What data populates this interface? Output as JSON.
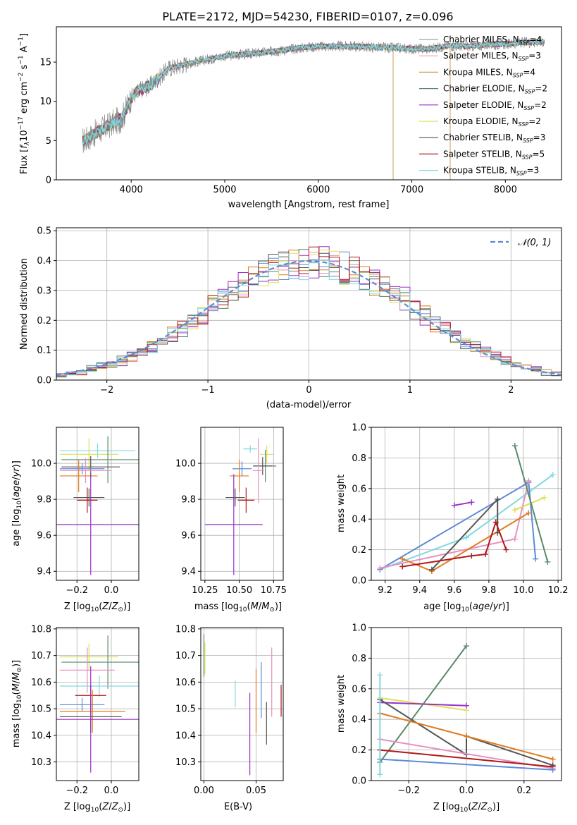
{
  "figure_title": "PLATE=2172, MJD=54230, FIBERID=0107, z=0.096",
  "colors": {
    "Chabrier MILES": "#8fa9b5",
    "Salpeter MILES": "#e8a0bf",
    "Kroupa MILES": "#c8a060",
    "Chabrier ELODIE": "#5a8a6a",
    "Salpeter ELODIE": "#9b30c9",
    "Kroupa ELODIE": "#dce05a",
    "Chabrier STELIB": "#555555",
    "Salpeter STELIB": "#b01818",
    "Kroupa STELIB": "#80d8e0",
    "blue": "#5b8bd8",
    "orange": "#e07a20",
    "pink": "#e890c0",
    "green": "#5a8a6a",
    "purple": "#9b30c9",
    "yellow": "#dce05a",
    "gray": "#555555",
    "red": "#b01818",
    "cyan": "#80d8e0",
    "normal": "#5b8bd8"
  },
  "chart_data": [
    {
      "id": "spectrum",
      "type": "line",
      "title": "",
      "xlabel": "wavelength [Angstrom, rest frame]",
      "ylabel": "Flux [f_λ 10^-17 erg cm^-2 s^-1 A^-1]",
      "xlim": [
        3200,
        8600
      ],
      "ylim": [
        0,
        19.5
      ],
      "xticks": [
        4000,
        5000,
        6000,
        7000,
        8000
      ],
      "yticks": [
        0,
        5,
        10,
        15
      ],
      "grid": false,
      "legend_position": "right",
      "continuum": {
        "x": [
          3500,
          3600,
          3700,
          3800,
          3900,
          4000,
          4100,
          4200,
          4300,
          4400,
          4600,
          4800,
          5000,
          5200,
          5400,
          5600,
          5800,
          6000,
          6200,
          6400,
          6600,
          6800,
          7000,
          7200,
          7400,
          7600,
          7800,
          8000,
          8200,
          8400
        ],
        "y": [
          5.0,
          5.8,
          6.5,
          7.2,
          7.8,
          10.5,
          11.5,
          12.0,
          13.0,
          14.2,
          14.8,
          15.3,
          15.8,
          16.0,
          16.2,
          16.5,
          16.8,
          17.0,
          17.0,
          17.0,
          16.9,
          16.8,
          16.7,
          16.7,
          17.1,
          17.0,
          17.2,
          17.3,
          17.5,
          17.6
        ]
      },
      "series": [
        {
          "name": "Chabrier MILES",
          "nssp": "4"
        },
        {
          "name": "Salpeter MILES",
          "nssp": "3"
        },
        {
          "name": "Kroupa MILES",
          "nssp": "4"
        },
        {
          "name": "Chabrier ELODIE",
          "nssp": "2"
        },
        {
          "name": "Salpeter ELODIE",
          "nssp": "2"
        },
        {
          "name": "Kroupa ELODIE",
          "nssp": "2"
        },
        {
          "name": "Chabrier STELIB",
          "nssp": "3"
        },
        {
          "name": "Salpeter STELIB",
          "nssp": "5"
        },
        {
          "name": "Kroupa STELIB",
          "nssp": "3"
        }
      ]
    },
    {
      "id": "residuals",
      "type": "line",
      "xlabel": "(data-model)/error",
      "ylabel": "Normed distribution",
      "xlim": [
        -2.5,
        2.5
      ],
      "ylim": [
        0,
        0.51
      ],
      "xticks": [
        -2,
        -1,
        0,
        1,
        2
      ],
      "yticks": [
        0.0,
        0.1,
        0.2,
        0.3,
        0.4,
        0.5
      ],
      "grid": true,
      "legend": "𝒩(0, 1)",
      "legend_position": "top-right",
      "bin_width": 0.1
    },
    {
      "id": "age-vs-Z",
      "type": "scatter",
      "xlabel": "Z [log10(Z/Z⊙)]",
      "ylabel": "age [log10(age/yr)]",
      "xlim": [
        -0.32,
        0.16
      ],
      "ylim": [
        9.35,
        10.2
      ],
      "xticks": [
        -0.2,
        0.0
      ],
      "yticks": [
        9.4,
        9.6,
        9.8,
        10.0
      ],
      "grid": true,
      "points": [
        {
          "color": "cyan",
          "x": -0.08,
          "xerr": 0.22,
          "y": 10.07,
          "yerr": 0.04
        },
        {
          "color": "yellow",
          "x": -0.13,
          "xerr": 0.17,
          "y": 10.05,
          "yerr": 0.09
        },
        {
          "color": "green",
          "x": -0.02,
          "xerr": 0.27,
          "y": 10.02,
          "yerr": 0.13
        },
        {
          "color": "gray",
          "x": -0.12,
          "xerr": 0.17,
          "y": 9.98,
          "yerr": 0.06
        },
        {
          "color": "blue",
          "x": -0.17,
          "xerr": 0.13,
          "y": 9.97,
          "yerr": 0.03
        },
        {
          "color": "pink",
          "x": -0.15,
          "xerr": 0.15,
          "y": 9.96,
          "yerr": 0.07
        },
        {
          "color": "orange",
          "x": -0.19,
          "xerr": 0.11,
          "y": 9.93,
          "yerr": 0.09
        },
        {
          "color": "gray",
          "x": -0.13,
          "xerr": 0.09,
          "y": 9.81,
          "yerr": 0.05
        },
        {
          "color": "red",
          "x": -0.14,
          "xerr": 0.06,
          "y": 9.795,
          "yerr": 0.07
        },
        {
          "color": "purple",
          "x": -0.12,
          "xerr": 0.28,
          "y": 9.66,
          "yerr": 0.28
        }
      ]
    },
    {
      "id": "age-vs-mass",
      "type": "scatter",
      "xlabel": "mass [log10(M/M⊙)]",
      "ylabel": "",
      "xlim": [
        10.22,
        10.82
      ],
      "ylim": [
        9.35,
        10.2
      ],
      "xticks": [
        10.25,
        10.5,
        10.75
      ],
      "yticks": [
        9.4,
        9.6,
        9.8,
        10.0
      ],
      "grid": true,
      "points": [
        {
          "color": "cyan",
          "x": 10.58,
          "xerr": 0.05,
          "y": 10.08,
          "yerr": 0.02
        },
        {
          "color": "yellow",
          "x": 10.7,
          "xerr": 0.05,
          "y": 10.05,
          "yerr": 0.05
        },
        {
          "color": "green",
          "x": 10.69,
          "xerr": 0.08,
          "y": 9.985,
          "yerr": 0.09
        },
        {
          "color": "gray",
          "x": 10.67,
          "xerr": 0.07,
          "y": 9.985,
          "yerr": 0.05
        },
        {
          "color": "blue",
          "x": 10.52,
          "xerr": 0.07,
          "y": 9.97,
          "yerr": 0.04
        },
        {
          "color": "pink",
          "x": 10.64,
          "xerr": 0.04,
          "y": 9.96,
          "yerr": 0.18
        },
        {
          "color": "orange",
          "x": 10.5,
          "xerr": 0.07,
          "y": 9.93,
          "yerr": 0.09
        },
        {
          "color": "gray",
          "x": 10.47,
          "xerr": 0.07,
          "y": 9.81,
          "yerr": 0.05
        },
        {
          "color": "red",
          "x": 10.55,
          "xerr": 0.06,
          "y": 9.795,
          "yerr": 0.07
        },
        {
          "color": "purple",
          "x": 10.46,
          "xerr": 0.21,
          "y": 9.66,
          "yerr": 0.28
        }
      ]
    },
    {
      "id": "massweight-vs-age",
      "type": "line",
      "xlabel": "age [log10(age/yr)]",
      "ylabel": "mass weight",
      "xlim": [
        9.12,
        10.22
      ],
      "ylim": [
        0,
        1.0
      ],
      "xticks": [
        9.2,
        9.4,
        9.6,
        9.8,
        10.0,
        10.2
      ],
      "yticks": [
        0.0,
        0.2,
        0.4,
        0.6,
        0.8,
        1.0
      ],
      "grid": true,
      "series": [
        {
          "color": "cyan",
          "x": [
            9.17,
            9.67,
            10.17
          ],
          "y": [
            0.07,
            0.28,
            0.69
          ]
        },
        {
          "color": "blue",
          "x": [
            9.17,
            10.03,
            10.07
          ],
          "y": [
            0.07,
            0.64,
            0.14
          ]
        },
        {
          "color": "pink",
          "x": [
            9.17,
            9.95,
            10.03
          ],
          "y": [
            0.08,
            0.27,
            0.65
          ]
        },
        {
          "color": "orange",
          "x": [
            9.3,
            9.47,
            10.03
          ],
          "y": [
            0.14,
            0.06,
            0.44
          ]
        },
        {
          "color": "gray",
          "x": [
            9.47,
            9.85,
            9.85
          ],
          "y": [
            0.07,
            0.53,
            0.31
          ]
        },
        {
          "color": "red",
          "x": [
            9.3,
            9.7,
            9.78,
            9.84,
            9.9
          ],
          "y": [
            0.09,
            0.16,
            0.17,
            0.38,
            0.2
          ]
        },
        {
          "color": "yellow",
          "x": [
            9.95,
            10.12
          ],
          "y": [
            0.46,
            0.54
          ]
        },
        {
          "color": "green",
          "x": [
            9.95,
            10.14
          ],
          "y": [
            0.88,
            0.12
          ]
        },
        {
          "color": "purple",
          "x": [
            9.6,
            9.7
          ],
          "y": [
            0.49,
            0.51
          ]
        }
      ]
    },
    {
      "id": "mass-vs-Z",
      "type": "scatter",
      "xlabel": "Z [log10(Z/Z⊙)]",
      "ylabel": "mass [log10(M/M⊙)]",
      "xlim": [
        -0.32,
        0.16
      ],
      "ylim": [
        10.23,
        10.805
      ],
      "xticks": [
        -0.2,
        0.0
      ],
      "yticks": [
        10.3,
        10.4,
        10.5,
        10.6,
        10.7,
        10.8
      ],
      "grid": true,
      "points": [
        {
          "color": "yellow",
          "x": -0.13,
          "xerr": 0.17,
          "y": 10.695,
          "yerr": 0.05
        },
        {
          "color": "green",
          "x": -0.02,
          "xerr": 0.27,
          "y": 10.675,
          "yerr": 0.1
        },
        {
          "color": "pink",
          "x": -0.14,
          "xerr": 0.16,
          "y": 10.645,
          "yerr": 0.085
        },
        {
          "color": "cyan",
          "x": -0.07,
          "xerr": 0.23,
          "y": 10.585,
          "yerr": 0.04
        },
        {
          "color": "red",
          "x": -0.12,
          "xerr": 0.09,
          "y": 10.55,
          "yerr": 0.04
        },
        {
          "color": "blue",
          "x": -0.17,
          "xerr": 0.13,
          "y": 10.515,
          "yerr": 0.025
        },
        {
          "color": "orange",
          "x": -0.11,
          "xerr": 0.19,
          "y": 10.49,
          "yerr": 0.08
        },
        {
          "color": "gray",
          "x": -0.12,
          "xerr": 0.18,
          "y": 10.47,
          "yerr": 0.06
        },
        {
          "color": "purple",
          "x": -0.12,
          "xerr": 0.28,
          "y": 10.46,
          "yerr": 0.2
        }
      ]
    },
    {
      "id": "mass-vs-EBV",
      "type": "scatter",
      "xlabel": "E(B-V)",
      "ylabel": "",
      "xlim": [
        -0.003,
        0.076
      ],
      "ylim": [
        10.23,
        10.805
      ],
      "xticks": [
        0.0,
        0.05
      ],
      "yticks": [
        10.3,
        10.4,
        10.5,
        10.6,
        10.7,
        10.8
      ],
      "grid": true,
      "points": [
        {
          "color": "green",
          "x": 0.0,
          "y": 10.7,
          "yerr": 0.08
        },
        {
          "color": "yellow",
          "x": 0.001,
          "y": 10.69,
          "yerr": 0.06
        },
        {
          "color": "cyan",
          "x": 0.03,
          "y": 10.555,
          "yerr": 0.05
        },
        {
          "color": "purple",
          "x": 0.044,
          "y": 10.405,
          "yerr": 0.155
        },
        {
          "color": "orange",
          "x": 0.05,
          "y": 10.53,
          "yerr": 0.12
        },
        {
          "color": "blue",
          "x": 0.055,
          "y": 10.57,
          "yerr": 0.105
        },
        {
          "color": "gray",
          "x": 0.06,
          "y": 10.445,
          "yerr": 0.08
        },
        {
          "color": "pink",
          "x": 0.065,
          "y": 10.6,
          "yerr": 0.13
        },
        {
          "color": "red",
          "x": 0.074,
          "y": 10.53,
          "yerr": 0.06
        }
      ]
    },
    {
      "id": "massweight-vs-Z",
      "type": "line",
      "xlabel": "Z [log10(Z/Z⊙)]",
      "ylabel": "mass weight",
      "xlim": [
        -0.33,
        0.33
      ],
      "ylim": [
        0,
        1.0
      ],
      "xticks": [
        -0.2,
        0.0,
        0.2
      ],
      "yticks": [
        0.0,
        0.2,
        0.4,
        0.6,
        0.8,
        1.0
      ],
      "grid": true,
      "series": [
        {
          "color": "yellow",
          "x": [
            -0.3,
            0.0
          ],
          "y": [
            0.54,
            0.46
          ]
        },
        {
          "color": "purple",
          "x": [
            -0.3,
            0.0
          ],
          "y": [
            0.51,
            0.49
          ]
        },
        {
          "color": "green",
          "x": [
            -0.3,
            0.0
          ],
          "y": [
            0.12,
            0.88
          ]
        },
        {
          "color": "gray",
          "x": [
            -0.3,
            0.0,
            0.0,
            0.3
          ],
          "y": [
            0.53,
            0.17,
            0.29,
            0.1
          ]
        },
        {
          "color": "orange",
          "x": [
            -0.3,
            0.0,
            0.3
          ],
          "y": [
            0.44,
            0.29,
            0.14
          ]
        },
        {
          "color": "pink",
          "x": [
            -0.3,
            0.3
          ],
          "y": [
            0.27,
            0.08
          ]
        },
        {
          "color": "red",
          "x": [
            -0.3,
            0.3
          ],
          "y": [
            0.2,
            0.09
          ]
        },
        {
          "color": "blue",
          "x": [
            -0.3,
            0.3
          ],
          "y": [
            0.14,
            0.07
          ]
        },
        {
          "color": "cyan",
          "x": [
            -0.3,
            -0.3
          ],
          "y": [
            0.04,
            0.69
          ]
        }
      ]
    }
  ]
}
